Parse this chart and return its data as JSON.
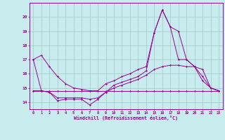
{
  "x": [
    0,
    1,
    2,
    3,
    4,
    5,
    6,
    7,
    8,
    9,
    10,
    11,
    12,
    13,
    14,
    15,
    16,
    17,
    18,
    19,
    20,
    21,
    22,
    23
  ],
  "series": [
    [
      17.0,
      17.3,
      16.5,
      15.8,
      15.3,
      15.0,
      14.9,
      14.8,
      14.8,
      15.3,
      15.5,
      15.8,
      16.0,
      16.3,
      16.5,
      18.9,
      20.5,
      19.3,
      17.0,
      17.0,
      16.5,
      15.5,
      15.0,
      14.8
    ],
    [
      17.0,
      14.8,
      14.7,
      14.1,
      14.2,
      14.2,
      14.2,
      13.8,
      14.2,
      14.7,
      15.2,
      15.4,
      15.6,
      15.8,
      16.2,
      18.9,
      20.5,
      19.3,
      19.0,
      17.0,
      16.5,
      15.8,
      15.0,
      14.8
    ],
    [
      14.8,
      14.8,
      14.7,
      14.3,
      14.3,
      14.3,
      14.3,
      14.2,
      14.3,
      14.7,
      15.0,
      15.2,
      15.4,
      15.6,
      15.9,
      16.3,
      16.5,
      16.6,
      16.6,
      16.5,
      16.5,
      16.3,
      15.0,
      14.8
    ],
    [
      14.8,
      14.8,
      14.8,
      14.8,
      14.8,
      14.8,
      14.8,
      14.8,
      14.8,
      14.8,
      14.8,
      14.8,
      14.8,
      14.8,
      14.8,
      14.8,
      14.8,
      14.8,
      14.8,
      14.8,
      14.8,
      14.8,
      14.8,
      14.8
    ]
  ],
  "color": "#990099",
  "bg_color": "#c8eced",
  "grid_color": "#a0c8c8",
  "xlabel": "Windchill (Refroidissement éolien,°C)",
  "ylim": [
    13.5,
    21.0
  ],
  "xlim": [
    -0.5,
    23.5
  ],
  "yticks": [
    14,
    15,
    16,
    17,
    18,
    19,
    20
  ],
  "xticks": [
    0,
    1,
    2,
    3,
    4,
    5,
    6,
    7,
    8,
    9,
    10,
    11,
    12,
    13,
    14,
    15,
    16,
    17,
    18,
    19,
    20,
    21,
    22,
    23
  ]
}
